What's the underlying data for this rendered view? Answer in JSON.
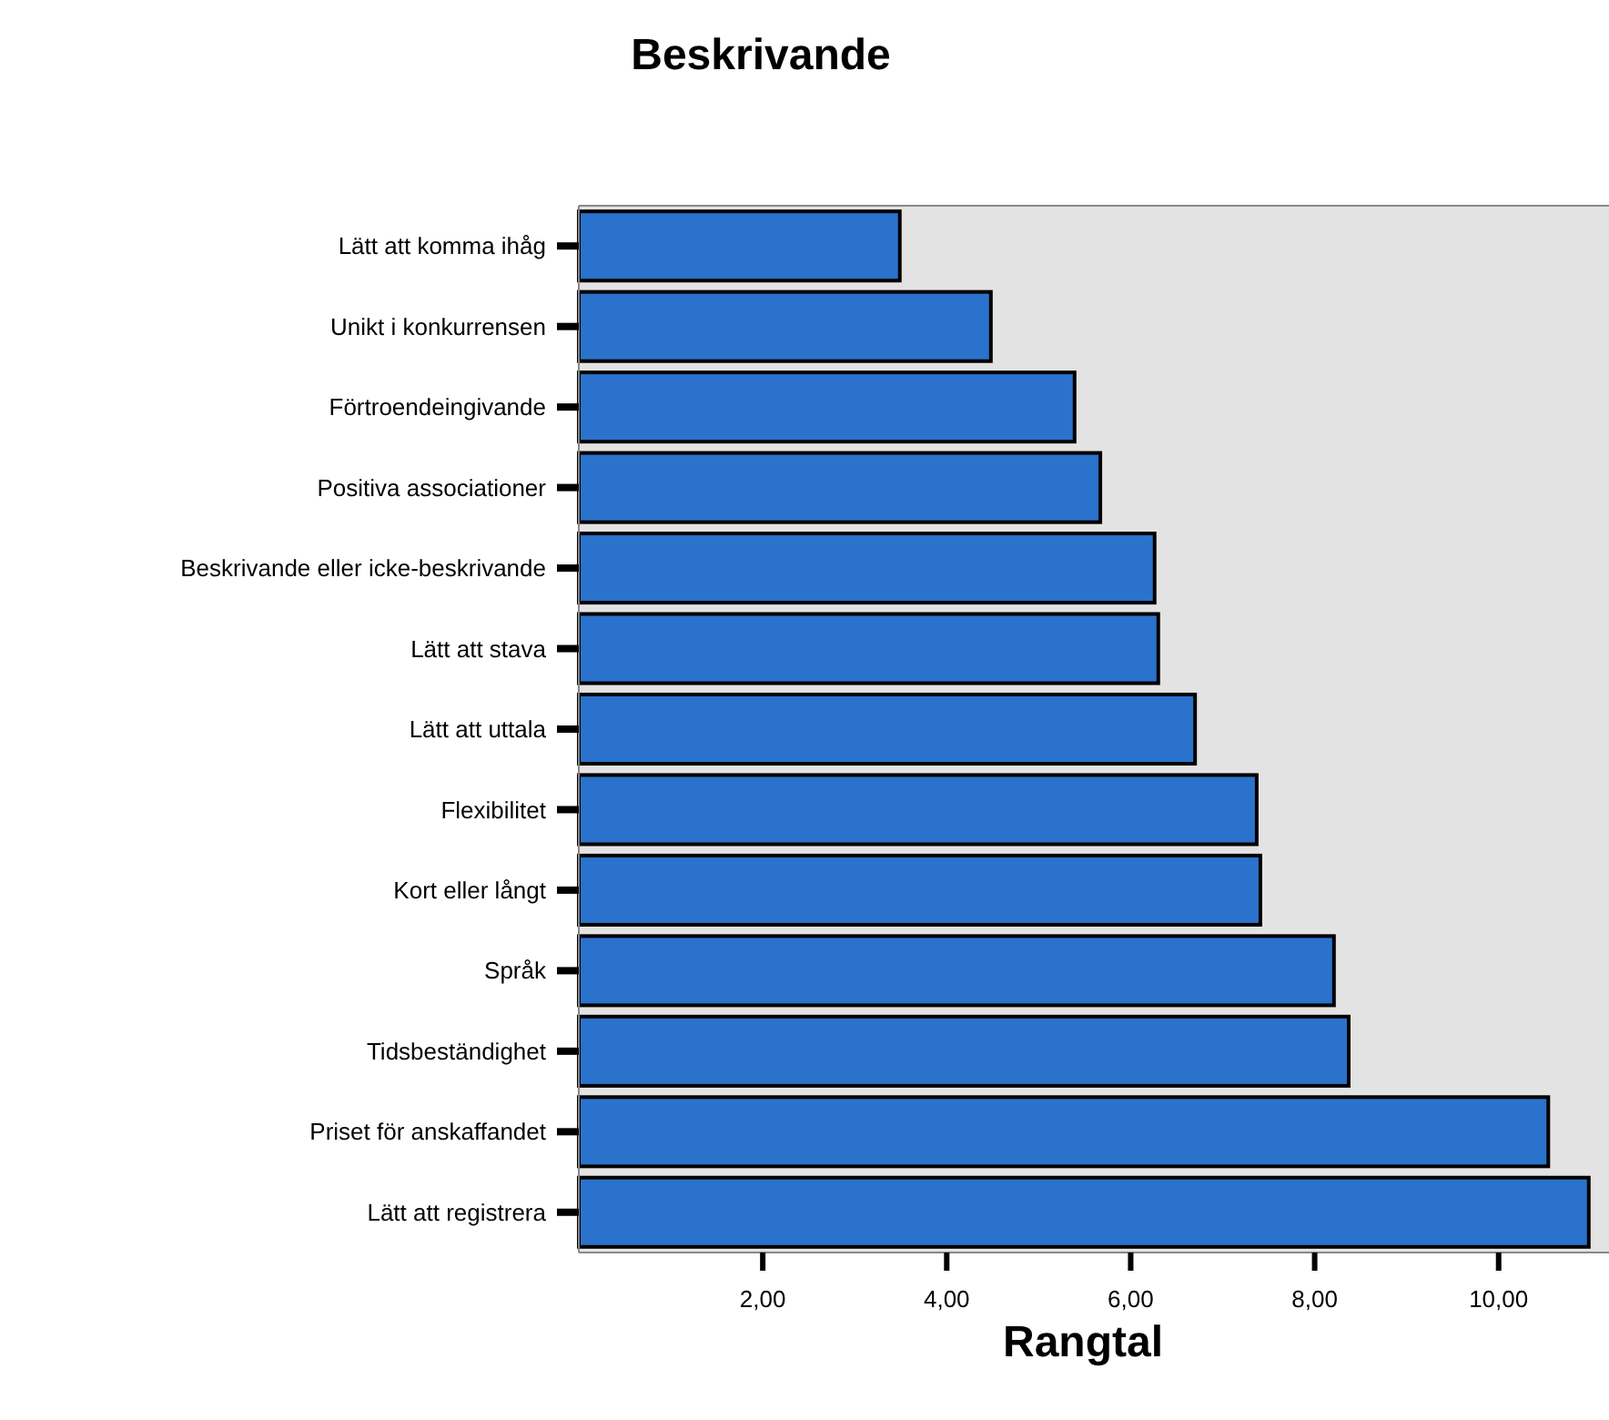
{
  "chart_data": {
    "type": "bar",
    "orientation": "horizontal",
    "title": "Beskrivande",
    "xlabel": "Rangtal",
    "categories": [
      "Lätt att komma ihåg",
      "Unikt i konkurrensen",
      "Förtroendeingivande",
      "Positiva associationer",
      "Beskrivande eller icke-beskrivande",
      "Lätt att stava",
      "Lätt att uttala",
      "Flexibilitet",
      "Kort eller långt",
      "Språk",
      "Tidsbeständighet",
      "Priset för anskaffandet",
      "Lätt att registrera"
    ],
    "values": [
      3.49,
      4.48,
      5.39,
      5.67,
      6.26,
      6.3,
      6.7,
      7.37,
      7.41,
      8.21,
      8.37,
      10.54,
      10.98
    ],
    "color": "#2a72cc",
    "xlim": [
      0,
      11.2
    ],
    "xticks": [
      {
        "value": 2,
        "label": "2,00"
      },
      {
        "value": 4,
        "label": "4,00"
      },
      {
        "value": 6,
        "label": "6,00"
      },
      {
        "value": 8,
        "label": "8,00"
      },
      {
        "value": 10,
        "label": "10,00"
      }
    ],
    "grid": false
  }
}
